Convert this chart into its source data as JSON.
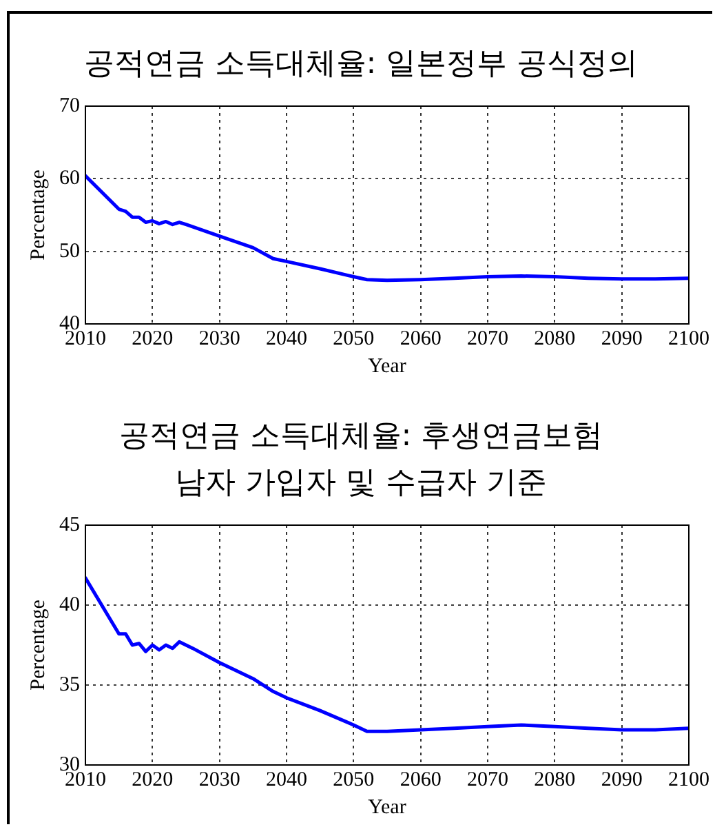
{
  "chart_data": [
    {
      "type": "line",
      "title": "공적연금 소득대체율: 일본정부 공식정의",
      "xlabel": "Year",
      "ylabel": "Percentage",
      "xlim": [
        2010,
        2100
      ],
      "xticks": [
        2010,
        2020,
        2030,
        2040,
        2050,
        2060,
        2070,
        2080,
        2090,
        2100
      ],
      "ylim": [
        40,
        70
      ],
      "yticks": [
        40,
        50,
        60,
        70
      ],
      "grid": true,
      "legend": false,
      "marker": "none",
      "line_style": "solid",
      "series": [
        {
          "color": "#0000ff",
          "x": [
            2010,
            2015,
            2016,
            2017,
            2018,
            2019,
            2020,
            2021,
            2022,
            2023,
            2024,
            2025,
            2030,
            2035,
            2038,
            2040,
            2045,
            2050,
            2052,
            2055,
            2060,
            2065,
            2070,
            2075,
            2080,
            2085,
            2090,
            2095,
            2100
          ],
          "values": [
            60.4,
            55.8,
            55.5,
            54.7,
            54.7,
            54.0,
            54.2,
            53.8,
            54.1,
            53.7,
            54.0,
            53.7,
            52.1,
            50.5,
            49.0,
            48.6,
            47.6,
            46.5,
            46.1,
            46.0,
            46.1,
            46.3,
            46.5,
            46.6,
            46.5,
            46.3,
            46.2,
            46.2,
            46.3
          ]
        }
      ]
    },
    {
      "type": "line",
      "title": "공적연금 소득대체율: 후생연금보험\n남자 가입자 및 수급자 기준",
      "xlabel": "Year",
      "ylabel": "Percentage",
      "xlim": [
        2010,
        2100
      ],
      "xticks": [
        2010,
        2020,
        2030,
        2040,
        2050,
        2060,
        2070,
        2080,
        2090,
        2100
      ],
      "ylim": [
        30,
        45
      ],
      "yticks": [
        30,
        35,
        40,
        45
      ],
      "grid": true,
      "legend": false,
      "marker": "none",
      "line_style": "solid",
      "series": [
        {
          "color": "#0000ff",
          "x": [
            2010,
            2015,
            2016,
            2017,
            2018,
            2019,
            2020,
            2021,
            2022,
            2023,
            2024,
            2025,
            2026,
            2030,
            2035,
            2038,
            2040,
            2045,
            2050,
            2052,
            2055,
            2060,
            2065,
            2070,
            2075,
            2080,
            2085,
            2090,
            2095,
            2100
          ],
          "values": [
            41.7,
            38.2,
            38.2,
            37.5,
            37.6,
            37.1,
            37.5,
            37.2,
            37.5,
            37.3,
            37.7,
            37.5,
            37.3,
            36.4,
            35.4,
            34.6,
            34.2,
            33.4,
            32.5,
            32.1,
            32.1,
            32.2,
            32.3,
            32.4,
            32.5,
            32.4,
            32.3,
            32.2,
            32.2,
            32.3
          ]
        }
      ]
    }
  ]
}
